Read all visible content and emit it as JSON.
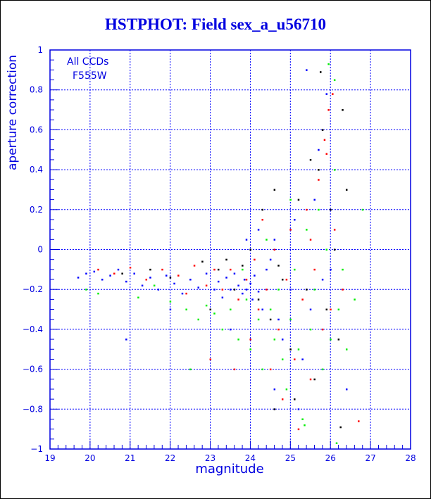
{
  "chart_data": {
    "type": "scatter",
    "title": "HSTPHOT: Field sex_a_u56710",
    "xlabel": "magnitude",
    "ylabel": "aperture correction",
    "xlim": [
      19,
      28
    ],
    "ylim": [
      -1,
      1
    ],
    "xticks": [
      "19",
      "20",
      "21",
      "22",
      "23",
      "24",
      "25",
      "26",
      "27",
      "28"
    ],
    "yticks": [
      "1",
      "0.8",
      "0.6",
      "0.4",
      "0.2",
      "0",
      "−0.2",
      "−0.4",
      "−0.6",
      "−0.8",
      "−1"
    ],
    "grid": true,
    "legend": {
      "placement": "top-left",
      "lines": [
        "All CCDs",
        "F555W"
      ]
    },
    "colors": {
      "axis": "#0000e0",
      "grid": "#0000ff"
    },
    "series": [
      {
        "name": "blue",
        "color": "#0000ff",
        "points": [
          [
            19.7,
            -0.14
          ],
          [
            19.9,
            -0.12
          ],
          [
            20.1,
            -0.11
          ],
          [
            20.3,
            -0.15
          ],
          [
            20.5,
            -0.13
          ],
          [
            20.7,
            -0.1
          ],
          [
            20.9,
            -0.16
          ],
          [
            21.1,
            -0.12
          ],
          [
            21.3,
            -0.18
          ],
          [
            21.5,
            -0.14
          ],
          [
            21.7,
            -0.2
          ],
          [
            21.9,
            -0.13
          ],
          [
            22.1,
            -0.17
          ],
          [
            22.3,
            -0.22
          ],
          [
            22.5,
            -0.15
          ],
          [
            22.7,
            -0.19
          ],
          [
            22.9,
            -0.12
          ],
          [
            23.1,
            -0.2
          ],
          [
            23.2,
            -0.16
          ],
          [
            23.3,
            -0.24
          ],
          [
            23.4,
            -0.14
          ],
          [
            23.5,
            -0.2
          ],
          [
            23.6,
            -0.12
          ],
          [
            23.7,
            -0.18
          ],
          [
            23.8,
            -0.22
          ],
          [
            23.85,
            -0.15
          ],
          [
            23.9,
            -0.2
          ],
          [
            24.0,
            -0.17
          ],
          [
            24.05,
            -0.25
          ],
          [
            24.1,
            -0.13
          ],
          [
            24.2,
            -0.21
          ],
          [
            24.3,
            -0.3
          ],
          [
            24.4,
            -0.1
          ],
          [
            24.5,
            -0.05
          ],
          [
            24.6,
            0.05
          ],
          [
            24.7,
            -0.35
          ],
          [
            24.8,
            -0.45
          ],
          [
            25.0,
            -0.2
          ],
          [
            25.1,
            0.15
          ],
          [
            25.3,
            -0.55
          ],
          [
            25.5,
            -0.3
          ],
          [
            25.6,
            0.25
          ],
          [
            25.8,
            -0.15
          ],
          [
            26.0,
            -0.1
          ],
          [
            25.7,
            0.5
          ],
          [
            25.9,
            0.78
          ],
          [
            25.4,
            0.9
          ],
          [
            23.5,
            -0.4
          ],
          [
            24.2,
            0.1
          ],
          [
            23.9,
            0.05
          ],
          [
            24.6,
            -0.7
          ],
          [
            25.2,
            -0.8
          ],
          [
            26.4,
            -0.7
          ],
          [
            22.0,
            -0.3
          ],
          [
            20.9,
            -0.45
          ]
        ]
      },
      {
        "name": "red",
        "color": "#ff0000",
        "points": [
          [
            20.2,
            -0.1
          ],
          [
            20.6,
            -0.12
          ],
          [
            21.0,
            -0.09
          ],
          [
            21.4,
            -0.15
          ],
          [
            21.8,
            -0.1
          ],
          [
            22.2,
            -0.13
          ],
          [
            22.6,
            -0.08
          ],
          [
            22.9,
            -0.18
          ],
          [
            23.1,
            -0.1
          ],
          [
            23.3,
            -0.2
          ],
          [
            23.5,
            -0.1
          ],
          [
            23.7,
            -0.25
          ],
          [
            23.9,
            -0.15
          ],
          [
            24.1,
            -0.05
          ],
          [
            24.2,
            -0.3
          ],
          [
            24.4,
            -0.2
          ],
          [
            24.6,
            0.0
          ],
          [
            24.7,
            -0.4
          ],
          [
            24.9,
            -0.15
          ],
          [
            25.0,
            0.1
          ],
          [
            25.1,
            -0.55
          ],
          [
            25.3,
            -0.25
          ],
          [
            25.4,
            0.2
          ],
          [
            25.5,
            -0.65
          ],
          [
            25.6,
            -0.1
          ],
          [
            25.7,
            0.35
          ],
          [
            25.8,
            -0.4
          ],
          [
            25.9,
            0.48
          ],
          [
            26.0,
            -0.3
          ],
          [
            26.1,
            0.1
          ],
          [
            25.85,
            0.55
          ],
          [
            25.95,
            0.7
          ],
          [
            26.05,
            0.78
          ],
          [
            24.5,
            -0.6
          ],
          [
            24.0,
            -0.45
          ],
          [
            23.6,
            -0.6
          ],
          [
            23.0,
            -0.55
          ],
          [
            24.8,
            -0.75
          ],
          [
            25.2,
            -0.9
          ],
          [
            26.7,
            -0.86
          ],
          [
            22.4,
            -0.22
          ],
          [
            24.3,
            0.15
          ],
          [
            25.5,
            0.05
          ],
          [
            26.3,
            -0.2
          ]
        ]
      },
      {
        "name": "green",
        "color": "#00ee00",
        "points": [
          [
            19.9,
            -0.2
          ],
          [
            20.2,
            -0.22
          ],
          [
            21.2,
            -0.24
          ],
          [
            21.6,
            -0.18
          ],
          [
            22.0,
            -0.26
          ],
          [
            22.4,
            -0.3
          ],
          [
            22.7,
            -0.35
          ],
          [
            22.9,
            -0.28
          ],
          [
            23.1,
            -0.32
          ],
          [
            23.3,
            -0.4
          ],
          [
            23.5,
            -0.3
          ],
          [
            23.7,
            -0.45
          ],
          [
            23.9,
            -0.25
          ],
          [
            24.0,
            -0.5
          ],
          [
            24.2,
            -0.35
          ],
          [
            24.3,
            -0.6
          ],
          [
            24.5,
            -0.3
          ],
          [
            24.6,
            -0.45
          ],
          [
            24.7,
            -0.2
          ],
          [
            24.8,
            -0.55
          ],
          [
            24.9,
            -0.7
          ],
          [
            25.0,
            -0.35
          ],
          [
            25.1,
            -0.1
          ],
          [
            25.2,
            -0.5
          ],
          [
            25.3,
            -0.85
          ],
          [
            25.4,
            0.1
          ],
          [
            25.5,
            -0.4
          ],
          [
            25.6,
            -0.2
          ],
          [
            25.7,
            0.2
          ],
          [
            25.8,
            -0.6
          ],
          [
            25.9,
            0.0
          ],
          [
            26.0,
            -0.45
          ],
          [
            26.1,
            0.4
          ],
          [
            26.2,
            -0.3
          ],
          [
            26.3,
            -0.1
          ],
          [
            26.4,
            -0.5
          ],
          [
            26.6,
            -0.25
          ],
          [
            26.8,
            0.2
          ],
          [
            26.1,
            0.85
          ],
          [
            25.95,
            0.93
          ],
          [
            26.15,
            -0.97
          ],
          [
            25.35,
            -0.88
          ],
          [
            22.5,
            -0.6
          ],
          [
            23.8,
            -0.1
          ],
          [
            24.4,
            0.05
          ],
          [
            25.0,
            0.25
          ]
        ]
      },
      {
        "name": "black",
        "color": "#000000",
        "points": [
          [
            20.8,
            -0.12
          ],
          [
            21.5,
            -0.1
          ],
          [
            22.0,
            -0.14
          ],
          [
            22.8,
            -0.06
          ],
          [
            23.2,
            -0.1
          ],
          [
            23.4,
            -0.05
          ],
          [
            23.6,
            -0.2
          ],
          [
            23.8,
            -0.08
          ],
          [
            24.0,
            0.0
          ],
          [
            24.2,
            -0.25
          ],
          [
            24.3,
            0.2
          ],
          [
            24.5,
            -0.35
          ],
          [
            24.6,
            0.3
          ],
          [
            24.8,
            -0.15
          ],
          [
            25.0,
            -0.5
          ],
          [
            25.2,
            0.25
          ],
          [
            25.4,
            -0.2
          ],
          [
            25.5,
            0.45
          ],
          [
            25.6,
            -0.65
          ],
          [
            25.7,
            0.4
          ],
          [
            25.8,
            0.6
          ],
          [
            25.9,
            -0.3
          ],
          [
            26.0,
            0.2
          ],
          [
            26.1,
            0.0
          ],
          [
            25.75,
            0.89
          ],
          [
            26.3,
            0.7
          ],
          [
            26.2,
            -0.45
          ],
          [
            26.25,
            -0.89
          ],
          [
            24.6,
            -0.8
          ],
          [
            25.1,
            -0.75
          ],
          [
            24.7,
            -0.08
          ],
          [
            23.0,
            -0.3
          ],
          [
            26.4,
            0.3
          ]
        ]
      }
    ]
  }
}
